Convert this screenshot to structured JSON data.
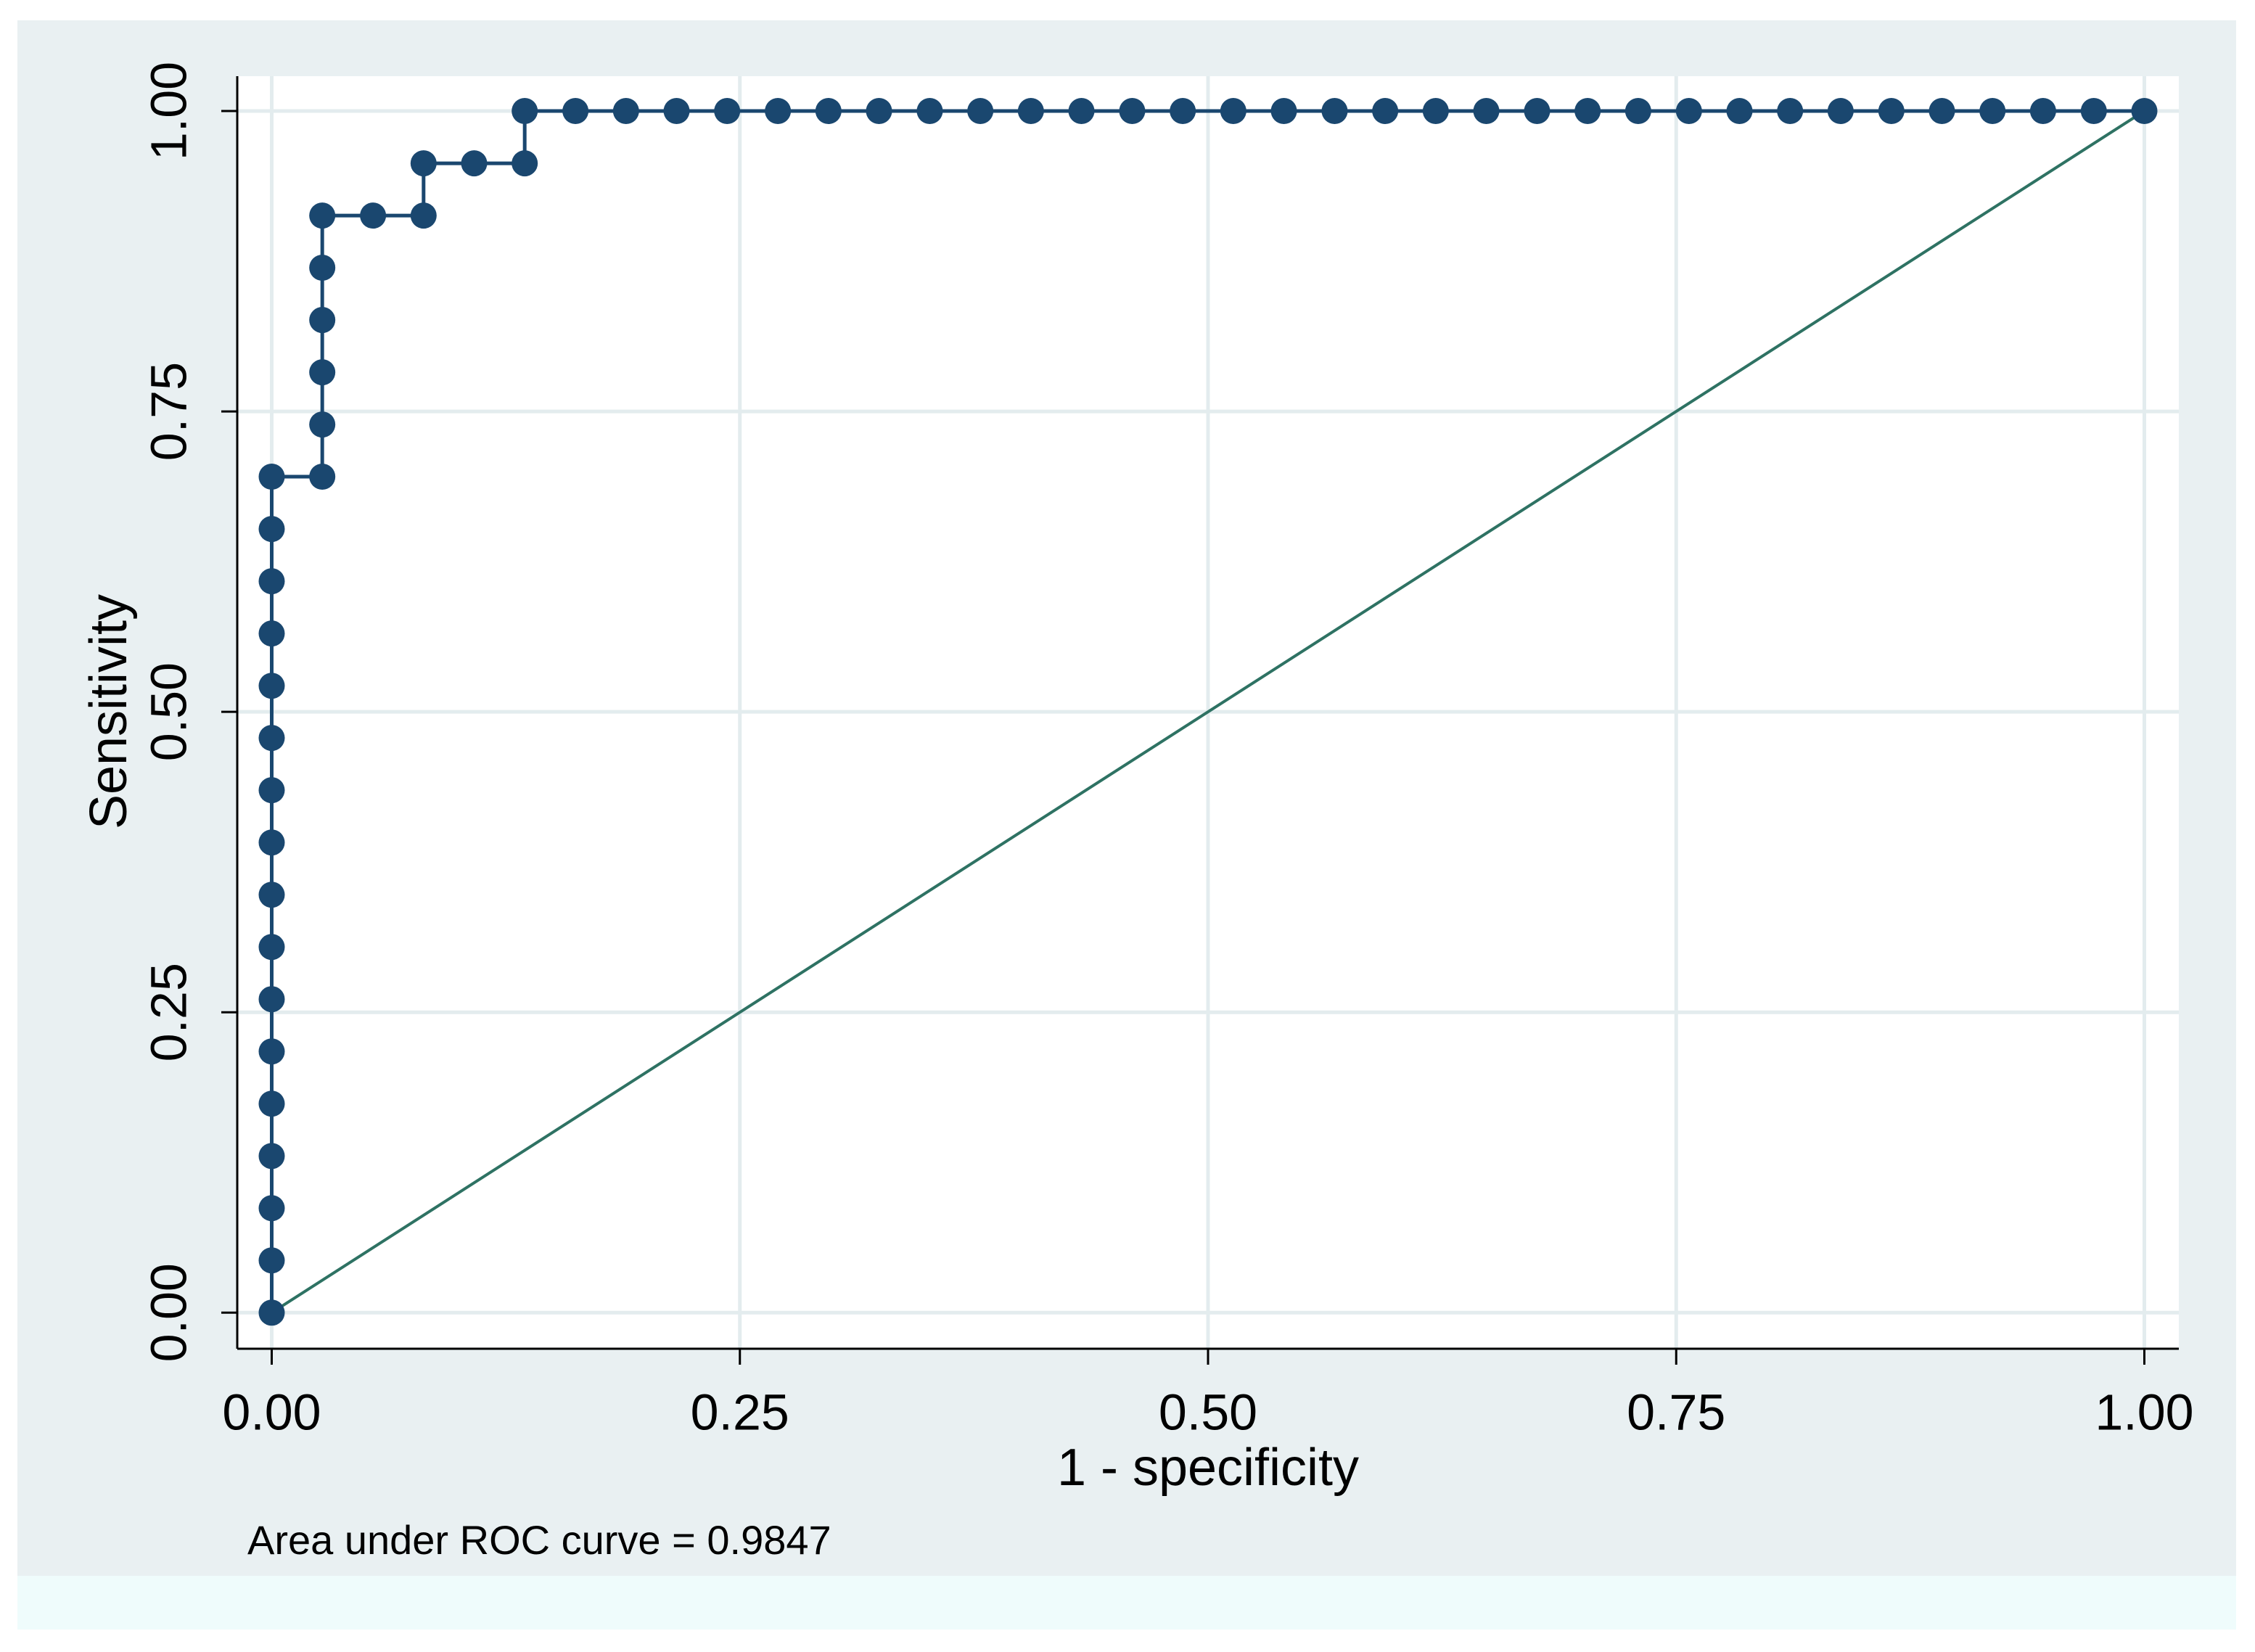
{
  "chart_data": {
    "type": "line",
    "x_label": "1 - specificity",
    "y_label": "Sensitivity",
    "note": "Area under ROC curve = 0.9847",
    "xlim": [
      -0.0184,
      1.0184
    ],
    "ylim": [
      -0.03,
      1.029
    ],
    "xticks": [
      {
        "value": 0,
        "label": "0.00"
      },
      {
        "value": 0.25,
        "label": "0.25"
      },
      {
        "value": 0.5,
        "label": "0.50"
      },
      {
        "value": 0.75,
        "label": "0.75"
      },
      {
        "value": 1,
        "label": "1.00"
      }
    ],
    "yticks": [
      {
        "value": 0,
        "label": "0.00"
      },
      {
        "value": 0.25,
        "label": "0.25"
      },
      {
        "value": 0.5,
        "label": "0.50"
      },
      {
        "value": 0.75,
        "label": "0.75"
      },
      {
        "value": 1,
        "label": "1.00"
      }
    ],
    "grid": true,
    "series": [
      {
        "color": "#1a476f",
        "markers": true,
        "x": [
          0,
          0,
          0,
          0,
          0,
          0,
          0,
          0,
          0,
          0,
          0,
          0,
          0,
          0,
          0,
          0,
          0,
          0.027,
          0.027,
          0.027,
          0.027,
          0.027,
          0.027,
          0.0541,
          0.0811,
          0.0811,
          0.1081,
          0.1351,
          0.1351,
          0.1622,
          0.1892,
          0.2162,
          0.2432,
          0.2703,
          0.2973,
          0.3243,
          0.3514,
          0.3784,
          0.4054,
          0.4324,
          0.4595,
          0.4865,
          0.5135,
          0.5405,
          0.5676,
          0.5946,
          0.6216,
          0.6486,
          0.6757,
          0.7027,
          0.7297,
          0.7568,
          0.7838,
          0.8108,
          0.8378,
          0.8649,
          0.8919,
          0.9189,
          0.9459,
          0.973,
          1
        ],
        "values": [
          0,
          0.0435,
          0.087,
          0.1304,
          0.1739,
          0.2174,
          0.2609,
          0.3043,
          0.3478,
          0.3913,
          0.4348,
          0.4783,
          0.5217,
          0.5652,
          0.6087,
          0.6522,
          0.6957,
          0.6957,
          0.7391,
          0.7826,
          0.8261,
          0.8696,
          0.913,
          0.913,
          0.913,
          0.9565,
          0.9565,
          0.9565,
          1,
          1,
          1,
          1,
          1,
          1,
          1,
          1,
          1,
          1,
          1,
          1,
          1,
          1,
          1,
          1,
          1,
          1,
          1,
          1,
          1,
          1,
          1,
          1,
          1,
          1,
          1,
          1,
          1,
          1,
          1,
          1,
          1
        ]
      },
      {
        "color": "#2e7263",
        "markers": false,
        "x": [
          0,
          1
        ],
        "values": [
          0,
          1
        ]
      }
    ]
  }
}
